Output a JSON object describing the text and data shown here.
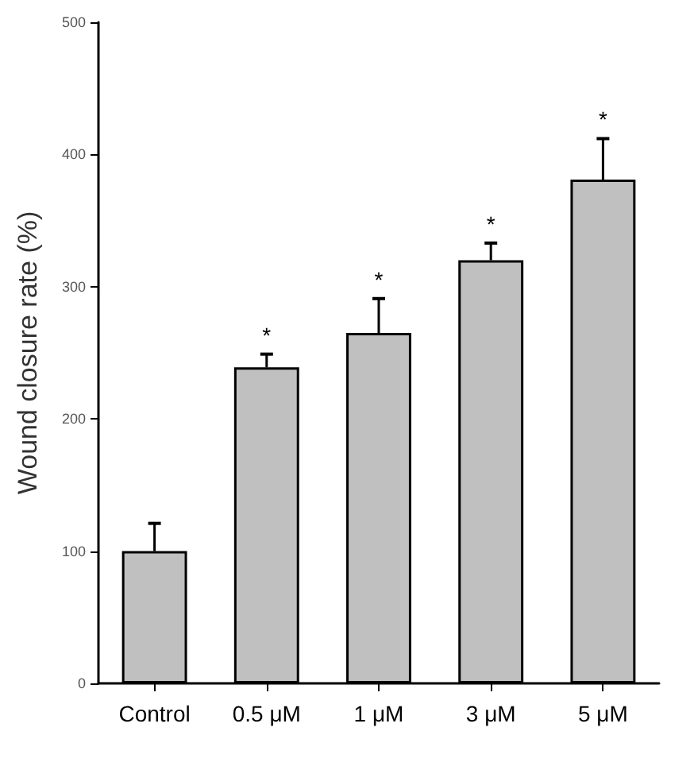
{
  "chart_data": {
    "type": "bar",
    "ylabel": "Wound closure rate (%)",
    "categories": [
      "Control",
      "0.5 μM",
      "1 μM",
      "3 μM",
      "5 μM"
    ],
    "values": [
      100,
      239,
      265,
      320,
      381
    ],
    "errors": [
      21,
      10,
      26,
      13,
      31
    ],
    "color": "#c0c0c0",
    "ylim": [
      0,
      500
    ],
    "yticks": [
      0,
      100,
      200,
      300,
      400,
      500
    ],
    "grid": false,
    "value_labels": [
      null,
      "*",
      "*",
      "*",
      "*"
    ]
  }
}
